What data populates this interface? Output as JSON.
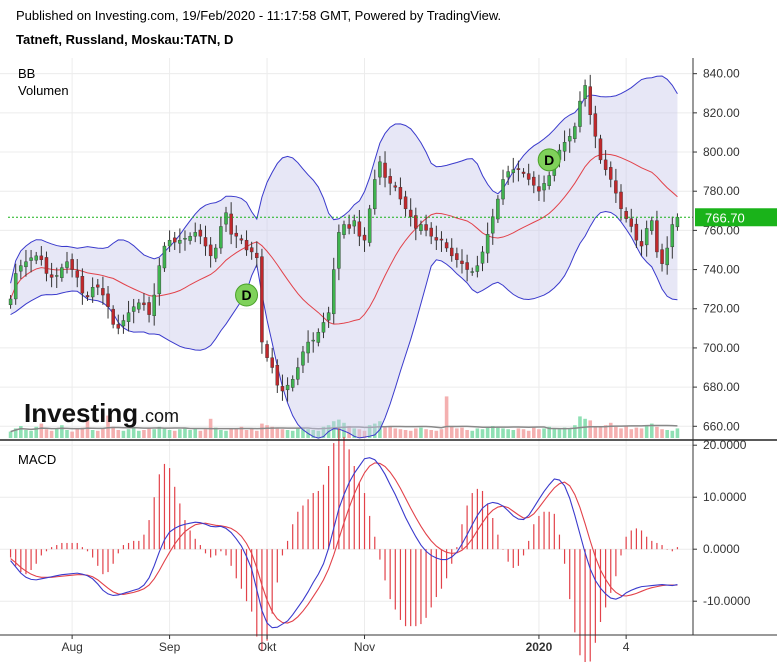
{
  "header": {
    "published": "Published on Investing.com, 19/Feb/2020 - 11:17:58 GMT, Powered by TradingView.",
    "symbol": "Tatneft, Russland, Moskau:TATN, D"
  },
  "logo": {
    "main": "Investing",
    "suffix": ".com"
  },
  "colors": {
    "up": "#3fb34f",
    "down": "#c0282c",
    "band": "#3a3acc",
    "basis": "#e2424a",
    "macd": "#3a3acc",
    "signal": "#e2424a",
    "hist": "#e2424a",
    "last_price_bg": "#1ab31a"
  },
  "chart_data": [
    {
      "type": "candlestick",
      "labels": [
        "BB",
        "Volumen"
      ],
      "last_price": "766.70",
      "yticks": [
        "840.00",
        "820.00",
        "800.00",
        "780.00",
        "760.00",
        "740.00",
        "720.00",
        "700.00",
        "680.00",
        "660.00"
      ],
      "ylim": [
        653,
        848
      ],
      "xticks": [
        "Aug",
        "Sep",
        "Okt",
        "Nov",
        "2020",
        "4"
      ],
      "markers": [
        {
          "label": "D",
          "date": "Sep 25",
          "value": 727
        },
        {
          "label": "D",
          "date": "Dez 24",
          "value": 796
        }
      ],
      "close": [
        725,
        738,
        742,
        744,
        746,
        747,
        745,
        738,
        736,
        737,
        741,
        744,
        740,
        736,
        728,
        726,
        731,
        731,
        727,
        721,
        712,
        710,
        714,
        718,
        721,
        723,
        722,
        717,
        727,
        742,
        752,
        755,
        754,
        755,
        756,
        757,
        759,
        757,
        752,
        747,
        751,
        762,
        769,
        758,
        757,
        755,
        750,
        749,
        746,
        703,
        695,
        690,
        681,
        678,
        681,
        684,
        690,
        698,
        703,
        704,
        708,
        713,
        718,
        740,
        759,
        763,
        761,
        765,
        757,
        755,
        771,
        786,
        795,
        787,
        784,
        782,
        776,
        771,
        767,
        761,
        763,
        760,
        757,
        755,
        755,
        751,
        747,
        745,
        743,
        740,
        739,
        742,
        749,
        758,
        767,
        776,
        786,
        790,
        791,
        791,
        789,
        786,
        783,
        780,
        784,
        788,
        795,
        801,
        805,
        808,
        813,
        826,
        834,
        819,
        808,
        796,
        791,
        786,
        779,
        771,
        766,
        762,
        755,
        752,
        761,
        765,
        749,
        743,
        751,
        763,
        766.7
      ],
      "volume_panel_range": [
        0,
        100
      ],
      "volume": [
        8,
        12,
        15,
        10,
        9,
        14,
        18,
        11,
        9,
        12,
        16,
        10,
        8,
        11,
        13,
        22,
        10,
        9,
        12,
        28,
        14,
        10,
        9,
        11,
        12,
        9,
        10,
        13,
        11,
        14,
        12,
        10,
        9,
        11,
        13,
        10,
        12,
        9,
        11,
        24,
        13,
        10,
        9,
        12,
        11,
        14,
        10,
        12,
        9,
        18,
        16,
        14,
        12,
        11,
        10,
        9,
        12,
        13,
        11,
        10,
        9,
        14,
        16,
        21,
        23,
        19,
        15,
        12,
        11,
        9,
        16,
        18,
        21,
        13,
        14,
        12,
        11,
        10,
        9,
        12,
        13,
        11,
        10,
        9,
        11,
        52,
        14,
        12,
        13,
        10,
        9,
        12,
        11,
        14,
        15,
        13,
        12,
        11,
        10,
        12,
        11,
        9,
        13,
        11,
        12,
        14,
        12,
        11,
        13,
        12,
        16,
        27,
        24,
        22,
        15,
        14,
        16,
        19,
        14,
        12,
        15,
        11,
        13,
        12,
        16,
        18,
        14,
        11,
        10,
        9,
        12
      ]
    },
    {
      "type": "line",
      "label": "MACD",
      "yticks": [
        "20.0000",
        "10.0000",
        "0.0000",
        "-10.0000"
      ],
      "ylim": [
        -16.5,
        21
      ],
      "macd": [
        -2.2,
        -3.4,
        -4.6,
        -5.4,
        -5.8,
        -5.9,
        -5.7,
        -5.5,
        -5.3,
        -5.1,
        -4.9,
        -4.8,
        -4.7,
        -4.6,
        -4.8,
        -5.1,
        -5.7,
        -6.7,
        -7.9,
        -8.6,
        -8.9,
        -8.8,
        -8.5,
        -8.2,
        -7.9,
        -7.6,
        -6.9,
        -5.5,
        -3.2,
        -0.5,
        1.8,
        3.3,
        4.0,
        4.5,
        4.8,
        5.0,
        5.2,
        5.1,
        4.8,
        4.4,
        4.3,
        4.4,
        4.0,
        3.2,
        2.0,
        0.6,
        -1.4,
        -3.8,
        -7.8,
        -11.8,
        -14.2,
        -15.1,
        -15.0,
        -14.4,
        -13.8,
        -12.6,
        -11.2,
        -9.8,
        -8.2,
        -6.4,
        -4.8,
        -2.8,
        0.2,
        4.0,
        7.8,
        10.5,
        12.8,
        14.6,
        16.0,
        17.4,
        17.6,
        17.2,
        16.0,
        14.4,
        12.4,
        10.5,
        8.3,
        6.1,
        4.2,
        2.4,
        0.8,
        -0.4,
        -1.2,
        -1.7,
        -2.0,
        -2.0,
        -1.5,
        -0.6,
        1.0,
        2.8,
        4.7,
        6.5,
        7.9,
        8.7,
        9.0,
        8.8,
        8.3,
        7.4,
        6.4,
        5.8,
        5.7,
        6.5,
        8.0,
        9.6,
        11.1,
        12.4,
        13.5,
        13.3,
        12.2,
        9.8,
        6.5,
        2.9,
        -0.7,
        -3.8,
        -6.0,
        -7.5,
        -8.6,
        -9.4,
        -9.6,
        -9.2,
        -8.4,
        -7.9,
        -7.5,
        -7.2,
        -7.1,
        -7.0,
        -6.9,
        -6.8,
        -6.9,
        -7.0,
        -6.8
      ],
      "signal": [
        -1.8,
        -2.6,
        -3.5,
        -4.2,
        -4.8,
        -5.2,
        -5.4,
        -5.4,
        -5.4,
        -5.3,
        -5.2,
        -5.1,
        -5.0,
        -4.9,
        -4.9,
        -5.0,
        -5.3,
        -5.9,
        -6.7,
        -7.5,
        -8.2,
        -8.6,
        -8.7,
        -8.5,
        -8.3,
        -8.0,
        -7.6,
        -6.9,
        -5.7,
        -4.1,
        -2.3,
        -0.6,
        1.0,
        2.3,
        3.4,
        4.1,
        4.7,
        4.9,
        5.0,
        4.8,
        4.6,
        4.5,
        4.3,
        4.0,
        3.4,
        2.5,
        1.1,
        -0.8,
        -3.6,
        -6.9,
        -9.8,
        -12.0,
        -13.4,
        -14.1,
        -14.2,
        -13.8,
        -13.0,
        -11.9,
        -10.6,
        -9.1,
        -7.6,
        -5.9,
        -3.8,
        -1.1,
        2.0,
        5.1,
        8.0,
        10.6,
        12.8,
        14.7,
        16.0,
        16.6,
        16.5,
        15.9,
        14.8,
        13.4,
        11.7,
        9.8,
        7.9,
        6.1,
        4.4,
        2.9,
        1.6,
        0.6,
        -0.1,
        -0.6,
        -0.8,
        -0.7,
        -0.2,
        0.7,
        2.0,
        3.6,
        5.1,
        6.5,
        7.5,
        8.1,
        8.3,
        8.0,
        7.3,
        6.6,
        6.0,
        6.1,
        6.8,
        8.0,
        9.3,
        10.6,
        11.8,
        12.6,
        12.9,
        12.2,
        10.5,
        8.0,
        4.9,
        1.6,
        -1.5,
        -4.0,
        -5.8,
        -7.3,
        -8.3,
        -8.9,
        -9.0,
        -8.8,
        -8.5,
        -8.1,
        -7.7,
        -7.4,
        -7.2,
        -7.0,
        -6.9,
        -6.9,
        -6.9
      ]
    }
  ]
}
